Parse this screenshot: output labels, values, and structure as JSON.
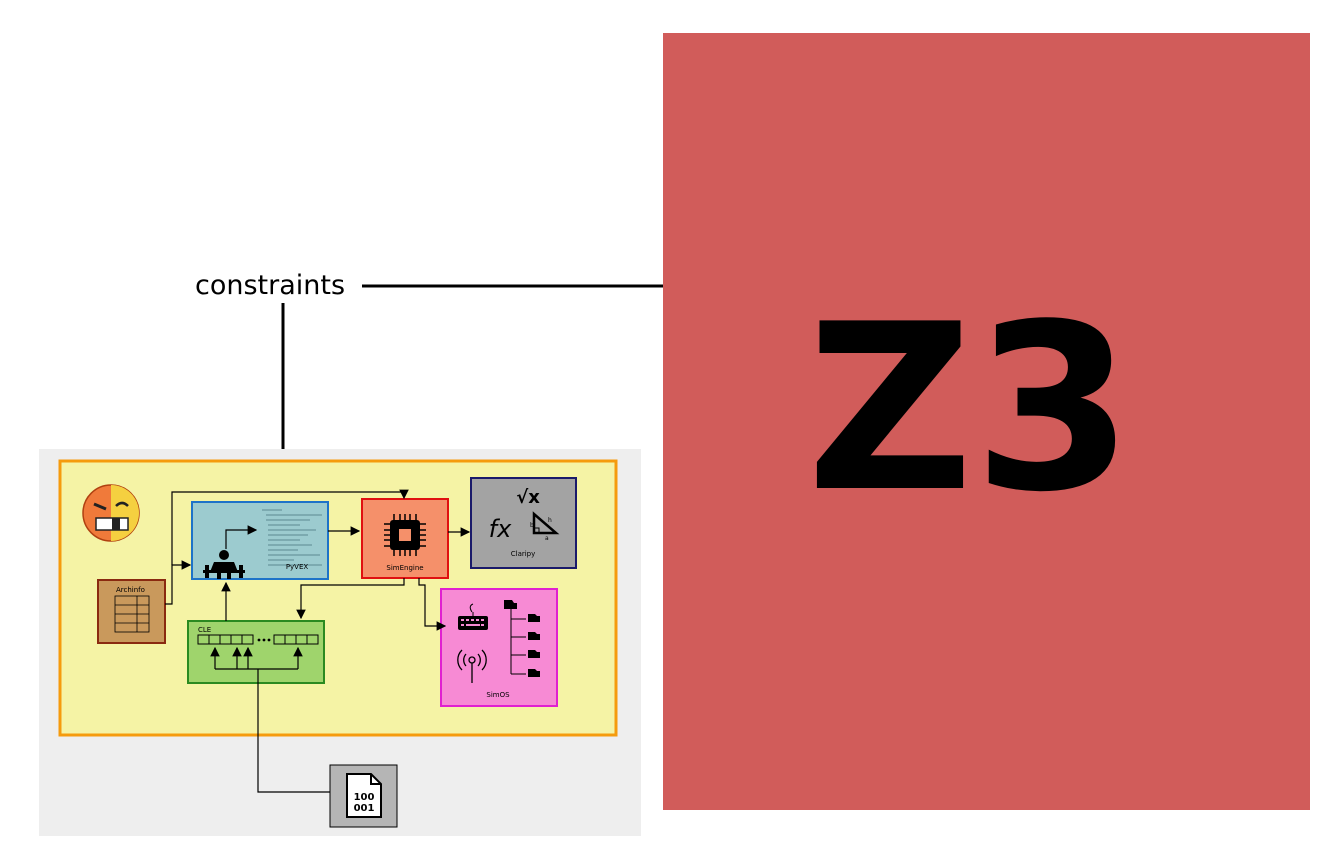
{
  "labels": {
    "constraints": "constraints",
    "z3": "Z3",
    "pyvex": "PyVEX",
    "simengine": "SimEngine",
    "claripy": "Claripy",
    "simos": "SimOS",
    "cle": "CLE",
    "archinfo": "Archinfo",
    "binary_top": "100",
    "binary_bottom": "001",
    "claripy_sqrt": "√x",
    "claripy_fx": "fx",
    "tri_a": "a",
    "tri_b": "b",
    "tri_h": "h"
  },
  "colors": {
    "z3_bg": "#d15c5a",
    "outer_panel": "#eeeeee",
    "angr_box_fill": "#f5f3a5",
    "angr_box_stroke": "#f59b0d",
    "pyvex_fill": "#9ccbcf",
    "pyvex_stroke": "#1e73c8",
    "simengine_fill": "#f5906a",
    "simengine_stroke": "#e01010",
    "claripy_fill": "#a3a3a3",
    "claripy_stroke": "#1a1a6a",
    "simos_fill": "#f78ad4",
    "simos_stroke": "#e020d0",
    "cle_fill": "#9fd46c",
    "cle_stroke": "#2a8a20",
    "archinfo_fill": "#c9995c",
    "archinfo_stroke": "#8a2a10",
    "binary_fill": "#b5b5b5"
  },
  "icons": [
    "angry-face-icon",
    "weightlifter-icon",
    "cpu-chip-icon",
    "math-function-icon",
    "keyboard-icon",
    "antenna-icon",
    "folder-tree-icon",
    "binary-file-icon"
  ]
}
